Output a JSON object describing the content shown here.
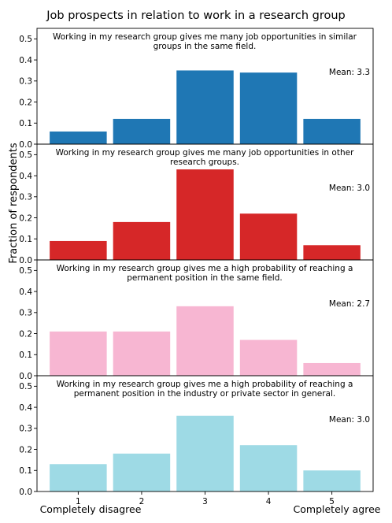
{
  "title": "Job prospects in relation to work in a research group",
  "ylabel": "Fraction of respondents",
  "x_caption_left": "Completely disagree",
  "x_caption_right": "Completely agree",
  "chart_data": {
    "type": "bar",
    "categories": [
      "1",
      "2",
      "3",
      "4",
      "5"
    ],
    "ylim": [
      0,
      0.55
    ],
    "yticks": [
      "0.0",
      "0.1",
      "0.2",
      "0.3",
      "0.4",
      "0.5"
    ],
    "panels": [
      {
        "statement": [
          "Working in my research group gives me many job opportunities in similar",
          "groups in the same field."
        ],
        "mean": "Mean: 3.3",
        "color": "#1f77b4",
        "values": [
          0.06,
          0.12,
          0.35,
          0.34,
          0.12
        ]
      },
      {
        "statement": [
          "Working in my research group gives me many job opportunities in other",
          "research groups."
        ],
        "mean": "Mean: 3.0",
        "color": "#d62728",
        "values": [
          0.09,
          0.18,
          0.43,
          0.22,
          0.07
        ]
      },
      {
        "statement": [
          "Working in my research group gives me a high probability of reaching a",
          "permanent position in the same field."
        ],
        "mean": "Mean: 2.7",
        "color": "#f7b6d2",
        "values": [
          0.21,
          0.21,
          0.33,
          0.17,
          0.06
        ]
      },
      {
        "statement": [
          "Working in my research group gives me a high probability of reaching a",
          "permanent position in the industry or private sector in general."
        ],
        "mean": "Mean: 3.0",
        "color": "#9edae5",
        "values": [
          0.13,
          0.18,
          0.36,
          0.22,
          0.1
        ]
      }
    ]
  }
}
